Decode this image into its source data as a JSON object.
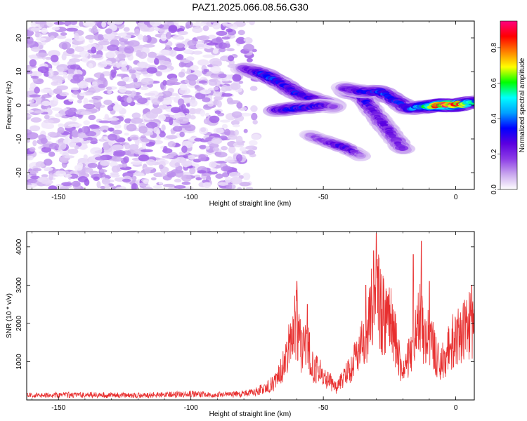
{
  "chart_data": [
    {
      "type": "heatmap",
      "title": "PAZ1.2025.066.08.56.G30",
      "xlabel": "Height of straight line (km)",
      "ylabel": "Frequency (Hz)",
      "xlim": [
        -162,
        7
      ],
      "ylim": [
        -25,
        25
      ],
      "x_ticks": [
        "-150",
        "-100",
        "-50",
        "0"
      ],
      "x_tick_values": [
        -150,
        -100,
        -50,
        0
      ],
      "y_ticks": [
        "20",
        "10",
        "0",
        "-10",
        "-20"
      ],
      "y_tick_values": [
        20,
        10,
        0,
        -10,
        -20
      ],
      "colorbar": {
        "label": "Normalized spectral amplitude",
        "range": [
          0,
          0.95
        ],
        "ticks": [
          "0.0",
          "0.2",
          "0.4",
          "0.6",
          "0.8"
        ],
        "tick_values": [
          0,
          0.2,
          0.4,
          0.6,
          0.8
        ],
        "colormap": [
          "#ffffff",
          "#c9a6ee",
          "#8c3ce6",
          "#5a00e0",
          "#0000ff",
          "#00a0ff",
          "#00ffff",
          "#00ff00",
          "#ffff00",
          "#ff8000",
          "#ff0000",
          "#ff0080"
        ]
      },
      "noise_region": {
        "x_range": [
          -162,
          -75
        ],
        "amplitude_range": [
          0.02,
          0.15
        ]
      },
      "tracks": [
        {
          "points": [
            [
              -80,
              11
            ],
            [
              -72,
              9
            ],
            [
              -66,
              6.5
            ],
            [
              -60,
              3.5
            ],
            [
              -52,
              1.5
            ],
            [
              -46,
              0
            ]
          ],
          "amplitude": [
            0.18,
            0.35,
            0.3,
            0.3,
            0.25,
            0.2
          ],
          "width_hz": 2.0
        },
        {
          "points": [
            [
              -68,
              -1.5
            ],
            [
              -62,
              -1
            ],
            [
              -55,
              -0.5
            ],
            [
              -50,
              0
            ],
            [
              -46,
              -0.5
            ]
          ],
          "amplitude": [
            0.25,
            0.3,
            0.3,
            0.25,
            0.15
          ],
          "width_hz": 2.0
        },
        {
          "points": [
            [
              -55,
              -9
            ],
            [
              -48,
              -11
            ],
            [
              -42,
              -12.5
            ],
            [
              -36,
              -15
            ]
          ],
          "amplitude": [
            0.12,
            0.2,
            0.3,
            0.12
          ],
          "width_hz": 1.6
        },
        {
          "points": [
            [
              -42,
              4
            ],
            [
              -36,
              3
            ],
            [
              -30,
              -3
            ],
            [
              -26,
              -7
            ],
            [
              -20,
              -13
            ]
          ],
          "amplitude": [
            0.2,
            0.3,
            0.22,
            0.22,
            0.2
          ],
          "width_hz": 1.8
        },
        {
          "points": [
            [
              -42,
              5
            ],
            [
              -35,
              4
            ],
            [
              -28,
              4
            ],
            [
              -24,
              2
            ],
            [
              -18,
              -1
            ],
            [
              -12,
              -0.5
            ],
            [
              -6,
              0
            ],
            [
              0,
              0
            ],
            [
              7,
              1
            ]
          ],
          "amplitude": [
            0.2,
            0.3,
            0.35,
            0.3,
            0.3,
            0.5,
            0.8,
            0.85,
            0.45
          ],
          "width_hz": 2.0
        }
      ]
    },
    {
      "type": "line",
      "title": "",
      "xlabel": "Height of straight line (km)",
      "ylabel": "SNR (10 * v/v)",
      "xlim": [
        -162,
        7
      ],
      "ylim": [
        0,
        4400
      ],
      "x_ticks": [
        "-150",
        "-100",
        "-50",
        "0"
      ],
      "x_tick_values": [
        -150,
        -100,
        -50,
        0
      ],
      "y_ticks": [
        "1000",
        "2000",
        "3000",
        "4000"
      ],
      "y_tick_values": [
        1000,
        2000,
        3000,
        4000
      ],
      "series": [
        {
          "color": "#e83030",
          "envelope_x": [
            -162,
            -140,
            -120,
            -100,
            -85,
            -78,
            -72,
            -68,
            -64,
            -62,
            -60,
            -58,
            -56,
            -54,
            -50,
            -45,
            -42,
            -39,
            -36,
            -34,
            -32,
            -30,
            -28,
            -26,
            -24,
            -22,
            -20,
            -18,
            -16,
            -14,
            -12,
            -10,
            -8,
            -6,
            -4,
            -2,
            0,
            2,
            4,
            6,
            7
          ],
          "envelope_y": [
            150,
            170,
            150,
            190,
            170,
            220,
            340,
            550,
            1200,
            2200,
            2300,
            1400,
            1800,
            1000,
            750,
            350,
            700,
            1050,
            1500,
            1900,
            2700,
            3200,
            2600,
            2400,
            2200,
            1500,
            750,
            1200,
            1900,
            2600,
            1900,
            1800,
            1500,
            1000,
            1300,
            1700,
            1850,
            1950,
            2100,
            2300,
            2400
          ],
          "spikes": [
            [
              -60,
              3100
            ],
            [
              -56,
              2500
            ],
            [
              -34,
              3000
            ],
            [
              -31,
              3900
            ],
            [
              -30,
              4350
            ],
            [
              -29,
              3700
            ],
            [
              -16,
              3800
            ],
            [
              -13,
              4150
            ],
            [
              -10,
              3100
            ],
            [
              6,
              3000
            ]
          ]
        }
      ]
    }
  ]
}
